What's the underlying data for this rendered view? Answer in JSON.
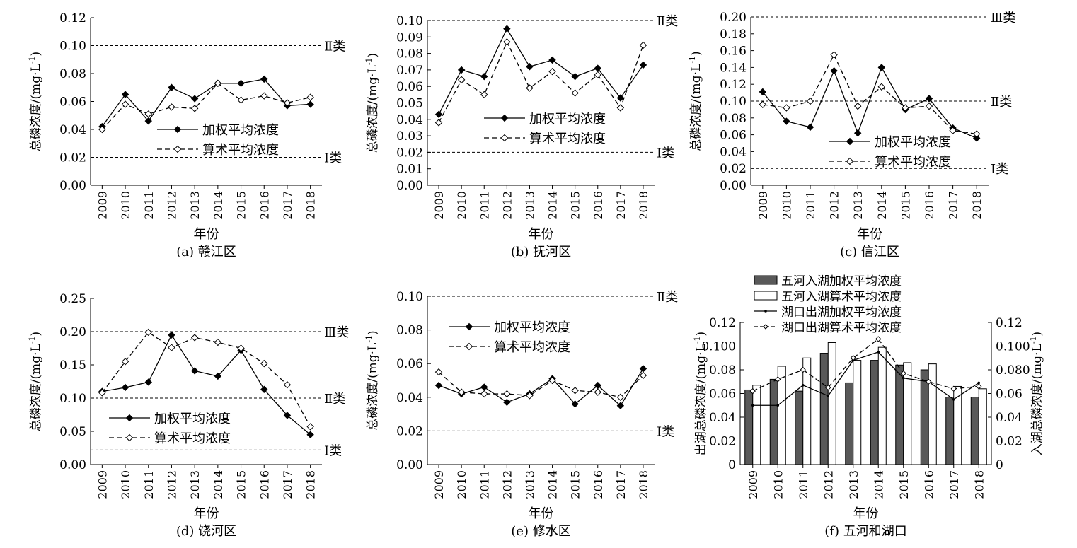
{
  "chart_data": [
    {
      "type": "line",
      "caption": "(a) 赣江区",
      "xlabel": "年份",
      "ylabel": "总磷浓度/(mg·L⁻¹)",
      "categories": [
        "2009",
        "2010",
        "2011",
        "2012",
        "2013",
        "2014",
        "2015",
        "2016",
        "2017",
        "2018"
      ],
      "ylim": [
        0,
        0.12
      ],
      "yticks": [
        "0.00",
        "0.02",
        "0.04",
        "0.06",
        "0.08",
        "0.10",
        "0.12"
      ],
      "series": [
        {
          "name": "加权平均浓度",
          "style": "solid",
          "values": [
            0.042,
            0.065,
            0.046,
            0.07,
            0.062,
            0.073,
            0.073,
            0.076,
            0.057,
            0.058
          ]
        },
        {
          "name": "算术平均浓度",
          "style": "dashed",
          "values": [
            0.04,
            0.058,
            0.051,
            0.056,
            0.055,
            0.073,
            0.061,
            0.064,
            0.059,
            0.063
          ]
        }
      ],
      "reference_lines": [
        {
          "value": 0.1,
          "label": "Ⅱ类"
        },
        {
          "value": 0.02,
          "label": "Ⅰ类"
        }
      ],
      "legend": "center-right"
    },
    {
      "type": "line",
      "caption": "(b) 抚河区",
      "xlabel": "年份",
      "ylabel": "总磷浓度/(mg·L⁻¹)",
      "categories": [
        "2009",
        "2010",
        "2011",
        "2012",
        "2013",
        "2014",
        "2015",
        "2016",
        "2017",
        "2018"
      ],
      "ylim": [
        0,
        0.1
      ],
      "yticks": [
        "0.00",
        "0.01",
        "0.02",
        "0.03",
        "0.04",
        "0.05",
        "0.06",
        "0.07",
        "0.08",
        "0.09",
        "0.10"
      ],
      "series": [
        {
          "name": "加权平均浓度",
          "style": "solid",
          "values": [
            0.043,
            0.07,
            0.066,
            0.095,
            0.072,
            0.076,
            0.066,
            0.071,
            0.053,
            0.073
          ]
        },
        {
          "name": "算术平均浓度",
          "style": "dashed",
          "values": [
            0.038,
            0.064,
            0.055,
            0.087,
            0.059,
            0.069,
            0.056,
            0.067,
            0.047,
            0.085
          ]
        }
      ],
      "reference_lines": [
        {
          "value": 0.1,
          "label": "Ⅱ类"
        },
        {
          "value": 0.02,
          "label": "Ⅰ类"
        }
      ],
      "legend": "center-right"
    },
    {
      "type": "line",
      "caption": "(c) 信江区",
      "xlabel": "年份",
      "ylabel": "总磷浓度/(mg·L⁻¹)",
      "categories": [
        "2009",
        "2010",
        "2011",
        "2012",
        "2013",
        "2014",
        "2015",
        "2016",
        "2017",
        "2018"
      ],
      "ylim": [
        0,
        0.2
      ],
      "yticks": [
        "0.00",
        "0.02",
        "0.04",
        "0.06",
        "0.08",
        "0.10",
        "0.12",
        "0.14",
        "0.16",
        "0.18",
        "0.20"
      ],
      "series": [
        {
          "name": "加权平均浓度",
          "style": "solid",
          "values": [
            0.111,
            0.076,
            0.069,
            0.136,
            0.062,
            0.14,
            0.09,
            0.103,
            0.068,
            0.056
          ]
        },
        {
          "name": "算术平均浓度",
          "style": "dashed",
          "values": [
            0.096,
            0.092,
            0.1,
            0.155,
            0.094,
            0.117,
            0.092,
            0.094,
            0.065,
            0.061
          ]
        }
      ],
      "reference_lines": [
        {
          "value": 0.2,
          "label": "Ⅲ类"
        },
        {
          "value": 0.1,
          "label": "Ⅱ类"
        },
        {
          "value": 0.02,
          "label": "Ⅰ类"
        }
      ],
      "legend": "bottom-right"
    },
    {
      "type": "line",
      "caption": "(d) 饶河区",
      "xlabel": "年份",
      "ylabel": "总磷浓度/(mg·L⁻¹)",
      "categories": [
        "2009",
        "2010",
        "2011",
        "2012",
        "2013",
        "2014",
        "2015",
        "2016",
        "2017",
        "2018"
      ],
      "ylim": [
        0,
        0.25
      ],
      "yticks": [
        "0.00",
        "0.05",
        "0.10",
        "0.15",
        "0.20",
        "0.25"
      ],
      "series": [
        {
          "name": "加权平均浓度",
          "style": "solid",
          "values": [
            0.11,
            0.116,
            0.124,
            0.195,
            0.141,
            0.133,
            0.172,
            0.113,
            0.074,
            0.045
          ]
        },
        {
          "name": "算术平均浓度",
          "style": "dashed",
          "values": [
            0.108,
            0.155,
            0.199,
            0.176,
            0.191,
            0.184,
            0.175,
            0.152,
            0.12,
            0.057
          ]
        }
      ],
      "reference_lines": [
        {
          "value": 0.2,
          "label": "Ⅲ类"
        },
        {
          "value": 0.1,
          "label": "Ⅱ类"
        },
        {
          "value": 0.022,
          "label": "Ⅰ类"
        }
      ],
      "legend": "bottom-left"
    },
    {
      "type": "line",
      "caption": "(e) 修水区",
      "xlabel": "年份",
      "ylabel": "总磷浓度/(mg·L⁻¹)",
      "categories": [
        "2009",
        "2010",
        "2011",
        "2012",
        "2013",
        "2014",
        "2015",
        "2016",
        "2017",
        "2018"
      ],
      "ylim": [
        0,
        0.1
      ],
      "yticks": [
        "0.00",
        "0.02",
        "0.04",
        "0.06",
        "0.08",
        "0.10"
      ],
      "series": [
        {
          "name": "加权平均浓度",
          "style": "solid",
          "values": [
            0.047,
            0.042,
            0.046,
            0.037,
            0.042,
            0.051,
            0.036,
            0.047,
            0.035,
            0.057
          ]
        },
        {
          "name": "算术平均浓度",
          "style": "dashed",
          "values": [
            0.055,
            0.043,
            0.042,
            0.042,
            0.041,
            0.05,
            0.044,
            0.043,
            0.04,
            0.053
          ]
        }
      ],
      "reference_lines": [
        {
          "value": 0.1,
          "label": "Ⅱ类"
        },
        {
          "value": 0.02,
          "label": "Ⅰ类"
        }
      ],
      "legend": "top-left"
    },
    {
      "type": "bar+line",
      "caption": "(f) 五河和湖口",
      "xlabel": "年份",
      "ylabel_left": "出湖总磷浓度/(mg·L⁻¹)",
      "ylabel_right": "入湖总磷浓度/(mg·L⁻¹)",
      "categories": [
        "2009",
        "2010",
        "2011",
        "2012",
        "2013",
        "2014",
        "2015",
        "2016",
        "2017",
        "2018"
      ],
      "ylim": [
        0,
        0.12
      ],
      "yticks_left": [
        "0",
        "0.02",
        "0.04",
        "0.06",
        "0.08",
        "0.100",
        "0.12"
      ],
      "yticks_right": [
        "0",
        "0.02",
        "0.04",
        "0.06",
        "0.080",
        "0.100",
        "0.12"
      ],
      "series": [
        {
          "name": "五河入湖加权平均浓度",
          "kind": "bar",
          "color": "#595959",
          "values": [
            0.063,
            0.072,
            0.062,
            0.094,
            0.069,
            0.088,
            0.084,
            0.08,
            0.057,
            0.057
          ]
        },
        {
          "name": "五河入湖算术平均浓度",
          "kind": "bar",
          "color": "#ffffff",
          "values": [
            0.067,
            0.083,
            0.09,
            0.103,
            0.088,
            0.099,
            0.086,
            0.085,
            0.066,
            0.064
          ]
        },
        {
          "name": "湖口出湖加权平均浓度",
          "kind": "line",
          "style": "solid",
          "values": [
            0.05,
            0.05,
            0.067,
            0.058,
            0.088,
            0.095,
            0.073,
            0.07,
            0.055,
            0.069
          ]
        },
        {
          "name": "湖口出湖算术平均浓度",
          "kind": "line",
          "style": "dashed",
          "values": [
            0.062,
            0.072,
            0.08,
            0.065,
            0.09,
            0.106,
            0.077,
            0.07,
            0.064,
            0.066
          ]
        }
      ],
      "legend": "top"
    }
  ]
}
